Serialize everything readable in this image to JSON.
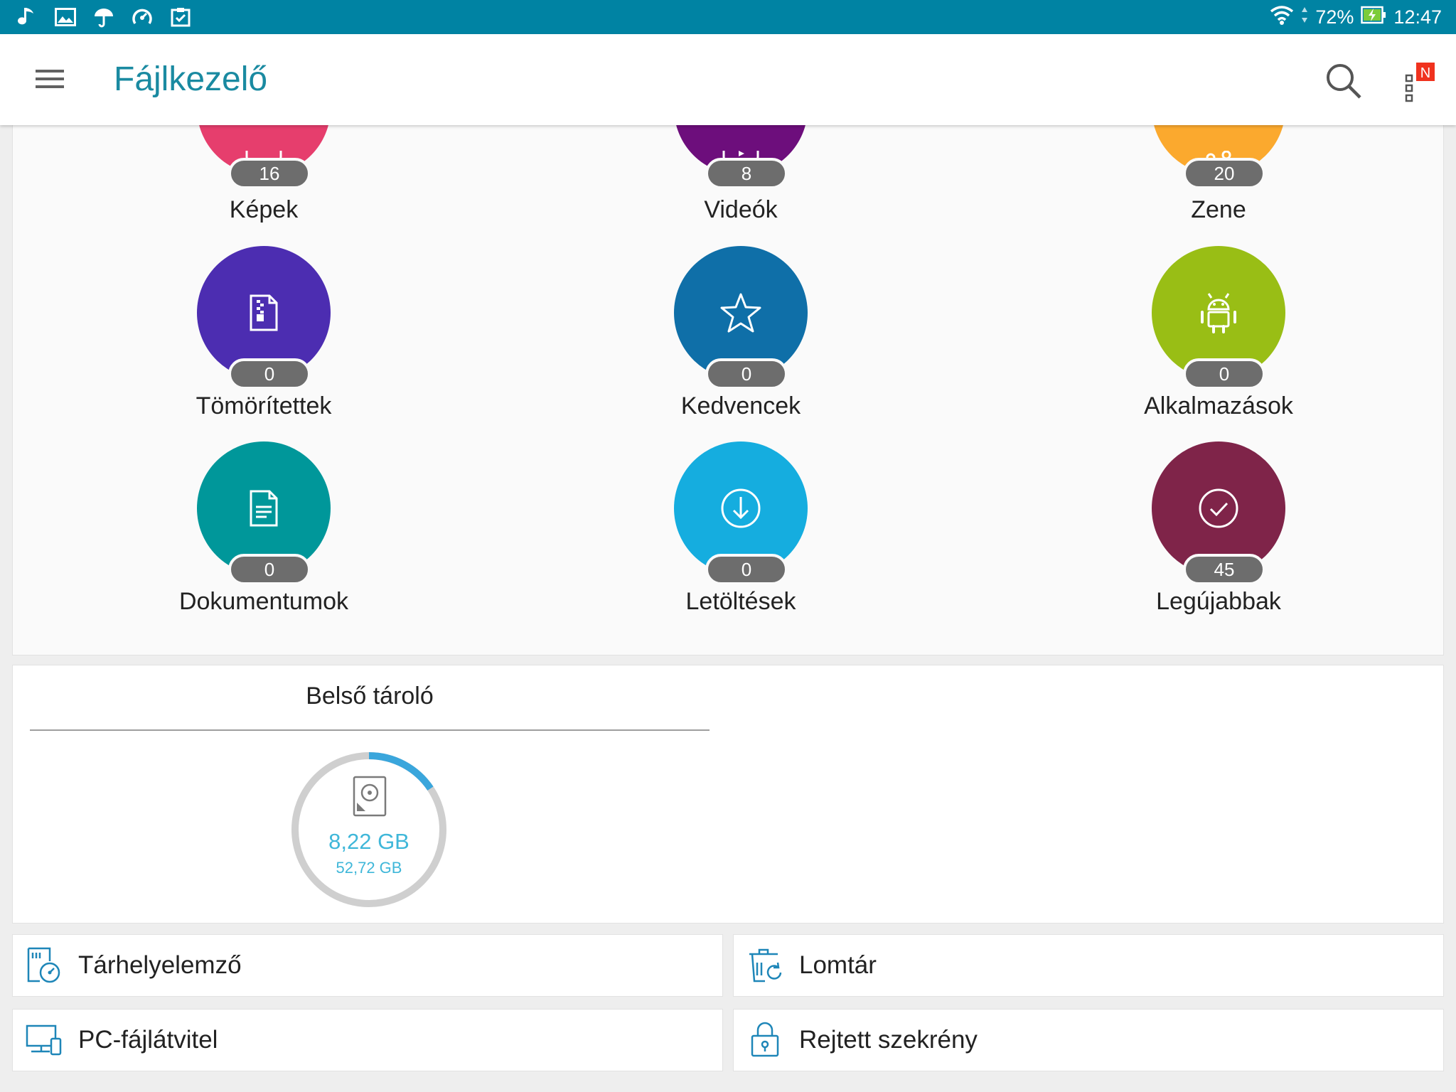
{
  "status_bar": {
    "battery": "72%",
    "time": "12:47",
    "left_icons": [
      "music-icon",
      "image-icon",
      "umbrella-icon",
      "speedometer-icon",
      "clipboard-check-icon"
    ]
  },
  "app_bar": {
    "title": "Fájlkezelő",
    "notification_badge": "N"
  },
  "categories": [
    {
      "label": "Képek",
      "count": "16",
      "color": "#e63e6d",
      "icon": "image-icon"
    },
    {
      "label": "Videók",
      "count": "8",
      "color": "#6d0e7c",
      "icon": "video-icon"
    },
    {
      "label": "Zene",
      "count": "20",
      "color": "#fba92e",
      "icon": "music-icon"
    },
    {
      "label": "Tömörítettek",
      "count": "0",
      "color": "#4c2db1",
      "icon": "zip-file-icon"
    },
    {
      "label": "Kedvencek",
      "count": "0",
      "color": "#0f6fa8",
      "icon": "star-icon"
    },
    {
      "label": "Alkalmazások",
      "count": "0",
      "color": "#99be15",
      "icon": "android-icon"
    },
    {
      "label": "Dokumentumok",
      "count": "0",
      "color": "#00979a",
      "icon": "document-icon"
    },
    {
      "label": "Letöltések",
      "count": "0",
      "color": "#15addf",
      "icon": "download-icon"
    },
    {
      "label": "Legújabbak",
      "count": "45",
      "color": "#7f2449",
      "icon": "check-circle-icon"
    }
  ],
  "storage": {
    "title": "Belső tároló",
    "used": "8,22 GB",
    "total": "52,72 GB",
    "used_fraction": 0.156,
    "colors": {
      "used": "#3aa6dc",
      "track": "#cfcfcf"
    }
  },
  "tools": [
    {
      "label": "Tárhelyelemző",
      "icon": "storage-analyzer-icon"
    },
    {
      "label": "Lomtár",
      "icon": "recycle-bin-icon"
    },
    {
      "label": "PC-fájlátvitel",
      "icon": "pc-transfer-icon"
    },
    {
      "label": "Rejtett szekrény",
      "icon": "locked-cabinet-icon"
    }
  ]
}
